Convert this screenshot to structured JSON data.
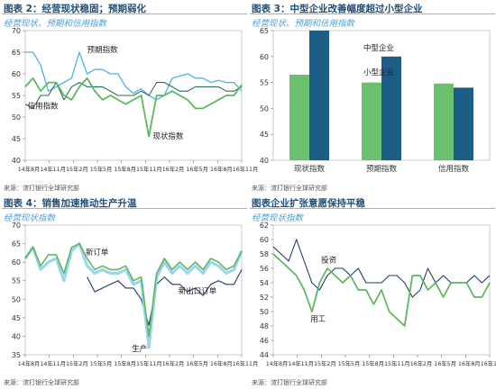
{
  "charts": [
    {
      "title": "图表 2：经营现状稳固；预期弱化",
      "subtitle": "经营现状、预期和信用指数",
      "source": "来源：渣打银行全球研究部"
    },
    {
      "title": "图表 3：中型企业改善幅度超过小型企业",
      "subtitle": "经营现状、预期和信用指数",
      "source": "来源：渣打银行全球研究部"
    },
    {
      "title": "图表 4：销售加速推动生产升温",
      "subtitle": "经营现状指数",
      "source": "来源：渣打银行全球研究部"
    },
    {
      "title": "图表企业扩张意愿保持平稳",
      "subtitle": "经营现状指数",
      "source": "来源：渣打银行全球研究部"
    }
  ],
  "chart_data": [
    {
      "type": "line",
      "xticks": [
        "14年8月",
        "14年11月",
        "15年2月",
        "15年5月",
        "15年8月",
        "15年11月",
        "16年2月",
        "16年5月",
        "16年8月",
        "16年11月"
      ],
      "xrange": [
        0,
        28
      ],
      "ylim": [
        40,
        70
      ],
      "yticks": [
        40,
        45,
        50,
        55,
        60,
        65,
        70
      ],
      "series": [
        {
          "name": "预期指数",
          "color": "#4bb3e6",
          "width": 1.3,
          "x": [
            0,
            1,
            2,
            3,
            4,
            5,
            6,
            7,
            8,
            9,
            10,
            11,
            12,
            13,
            14,
            15,
            16,
            17,
            18,
            19,
            20,
            21,
            22,
            23,
            24,
            25,
            26,
            27,
            28
          ],
          "y": [
            65,
            65,
            62,
            56,
            57,
            58,
            59,
            65,
            60,
            61,
            61,
            60,
            60,
            57,
            55.5,
            56.5,
            55,
            54,
            55,
            59,
            59.5,
            60,
            59,
            59,
            58,
            58.5,
            58,
            58,
            56
          ]
        },
        {
          "name": "信用指数",
          "color": "#2f6b5a",
          "width": 1.1,
          "x": [
            0,
            1,
            2,
            3,
            4,
            5,
            6,
            7,
            8,
            9,
            10,
            11,
            12,
            13,
            14,
            15,
            16,
            17,
            18,
            19,
            20,
            21,
            22,
            23,
            24,
            25,
            26,
            27,
            28
          ],
          "y": [
            53,
            52,
            55,
            55,
            58,
            54,
            57,
            58,
            57,
            57,
            57,
            56,
            55,
            55,
            55,
            56,
            55,
            58,
            58,
            57,
            56,
            56,
            57,
            57,
            57,
            57,
            56,
            56,
            57
          ]
        },
        {
          "name": "现状指数",
          "color": "#5cb85c",
          "width": 1.8,
          "x": [
            0,
            1,
            2,
            3,
            4,
            5,
            6,
            7,
            8,
            9,
            10,
            11,
            12,
            13,
            14,
            15,
            16,
            17,
            18,
            19,
            20,
            21,
            22,
            23,
            24,
            25,
            26,
            27,
            28
          ],
          "y": [
            57,
            59,
            56,
            58,
            58,
            55,
            54,
            57,
            59,
            56,
            54,
            55,
            54,
            53,
            54,
            55,
            45.5,
            55,
            55,
            56,
            55,
            54,
            52,
            52,
            53,
            54,
            55,
            55,
            57.5
          ]
        }
      ],
      "annotations": [
        {
          "text": "预期指数",
          "x": 8,
          "y": 65
        },
        {
          "text": "信用指数",
          "x": 0.3,
          "y": 52
        },
        {
          "text": "现状指数",
          "x": 16.5,
          "y": 45
        }
      ]
    },
    {
      "type": "bar",
      "categories": [
        "现状指数",
        "预期指数",
        "信用指数"
      ],
      "ylim": [
        40,
        65
      ],
      "yticks": [
        40,
        45,
        50,
        55,
        60,
        65
      ],
      "series": [
        {
          "name": "小型企业",
          "color": "#6cc06c",
          "values": [
            56.5,
            55,
            54.8
          ]
        },
        {
          "name": "中型企业",
          "color": "#1c5d86",
          "values": [
            65,
            60,
            54
          ]
        }
      ],
      "annotations": [
        {
          "text": "小型企业",
          "cat": 1,
          "y": 56.5
        },
        {
          "text": "中型企业",
          "cat": 1,
          "y": 61.2
        }
      ]
    },
    {
      "type": "line",
      "xticks": [
        "14年8月",
        "14年11月",
        "15年2月",
        "15年5月",
        "15年8月",
        "15年11月",
        "16年2月",
        "16年5月",
        "16年8月",
        "16年11月"
      ],
      "xrange": [
        0,
        28
      ],
      "ylim": [
        35,
        70
      ],
      "yticks": [
        35,
        40,
        45,
        50,
        55,
        60,
        65,
        70
      ],
      "series": [
        {
          "name": "新出口订单",
          "color": "#1c3a6b",
          "width": 1.1,
          "x": [
            8,
            9,
            10,
            11,
            12,
            13,
            14,
            15,
            16,
            17,
            18,
            19,
            20,
            21,
            22,
            23,
            24,
            25,
            26,
            27,
            28
          ],
          "y": [
            56,
            52,
            53,
            54,
            55,
            53,
            53,
            50,
            43,
            54,
            56,
            54,
            54,
            52,
            53,
            51,
            54,
            55,
            54,
            54,
            58
          ]
        },
        {
          "name": "新订单",
          "color": "#9fd4ef",
          "width": 3.2,
          "x": [
            0,
            1,
            2,
            3,
            4,
            5,
            6,
            7,
            8,
            9,
            10,
            11,
            12,
            13,
            14,
            15,
            16,
            17,
            18,
            19,
            20,
            21,
            22,
            23,
            24,
            25,
            26,
            27,
            28
          ],
          "y": [
            61,
            64,
            58,
            60,
            61,
            55,
            63,
            65,
            59,
            57,
            58,
            57,
            57,
            58,
            54,
            55,
            37,
            56,
            60,
            57,
            59,
            57,
            59,
            57,
            60,
            59,
            57,
            58,
            63
          ]
        },
        {
          "name": "生产",
          "color": "#5cb85c",
          "width": 1.6,
          "x": [
            0,
            1,
            2,
            3,
            4,
            5,
            6,
            7,
            8,
            9,
            10,
            11,
            12,
            13,
            14,
            15,
            16,
            17,
            18,
            19,
            20,
            21,
            22,
            23,
            24,
            25,
            26,
            27,
            28
          ],
          "y": [
            61,
            64,
            59,
            62,
            62,
            57,
            64,
            65,
            61,
            58,
            59,
            58,
            58,
            59,
            55,
            56,
            40,
            57,
            61,
            58,
            60,
            58,
            60,
            58,
            61,
            60,
            58,
            59,
            63
          ]
        }
      ],
      "annotations": [
        {
          "text": "新订单",
          "x": 7.8,
          "y": 62
        },
        {
          "text": "新出口订单",
          "x": 19.8,
          "y": 51.5
        },
        {
          "text": "生产",
          "x": 13.8,
          "y": 36
        }
      ]
    },
    {
      "type": "line",
      "xticks": [
        "14年8月",
        "14年11月",
        "15年2月",
        "15年5月",
        "15年8月",
        "15年11月",
        "16年2月",
        "16年5月",
        "16年8月",
        "16年11月"
      ],
      "xrange": [
        0,
        28
      ],
      "ylim": [
        44,
        62
      ],
      "yticks": [
        44,
        46,
        48,
        50,
        52,
        54,
        56,
        58,
        60,
        62
      ],
      "series": [
        {
          "name": "投资",
          "color": "#1c3a6b",
          "width": 1.1,
          "x": [
            0,
            1,
            2,
            3,
            4,
            5,
            6,
            7,
            8,
            9,
            10,
            11,
            12,
            13,
            14,
            15,
            16,
            17,
            18,
            19,
            20,
            21,
            22,
            23,
            24,
            25,
            26,
            27,
            28
          ],
          "y": [
            59,
            58,
            57,
            60,
            57,
            54,
            53,
            55,
            56,
            56,
            55,
            56,
            54,
            54,
            54,
            55,
            55,
            54,
            52,
            53,
            56,
            54,
            55,
            54,
            54,
            54,
            55,
            54,
            55
          ]
        },
        {
          "name": "用工",
          "color": "#5cb85c",
          "width": 1.8,
          "x": [
            0,
            1,
            2,
            3,
            4,
            5,
            6,
            7,
            8,
            9,
            10,
            11,
            12,
            13,
            14,
            15,
            16,
            17,
            18,
            19,
            20,
            21,
            22,
            23,
            24,
            25,
            26,
            27,
            28
          ],
          "y": [
            58,
            57,
            56,
            55,
            53,
            50,
            54,
            56,
            55,
            54,
            55,
            53,
            53,
            51,
            53,
            50,
            49,
            48,
            55,
            55,
            53,
            54,
            52,
            54,
            54,
            54,
            52,
            52,
            54
          ]
        }
      ],
      "annotations": [
        {
          "text": "投资",
          "x": 6.2,
          "y": 56.8
        },
        {
          "text": "用工",
          "x": 4.8,
          "y": 48.6
        }
      ]
    }
  ]
}
